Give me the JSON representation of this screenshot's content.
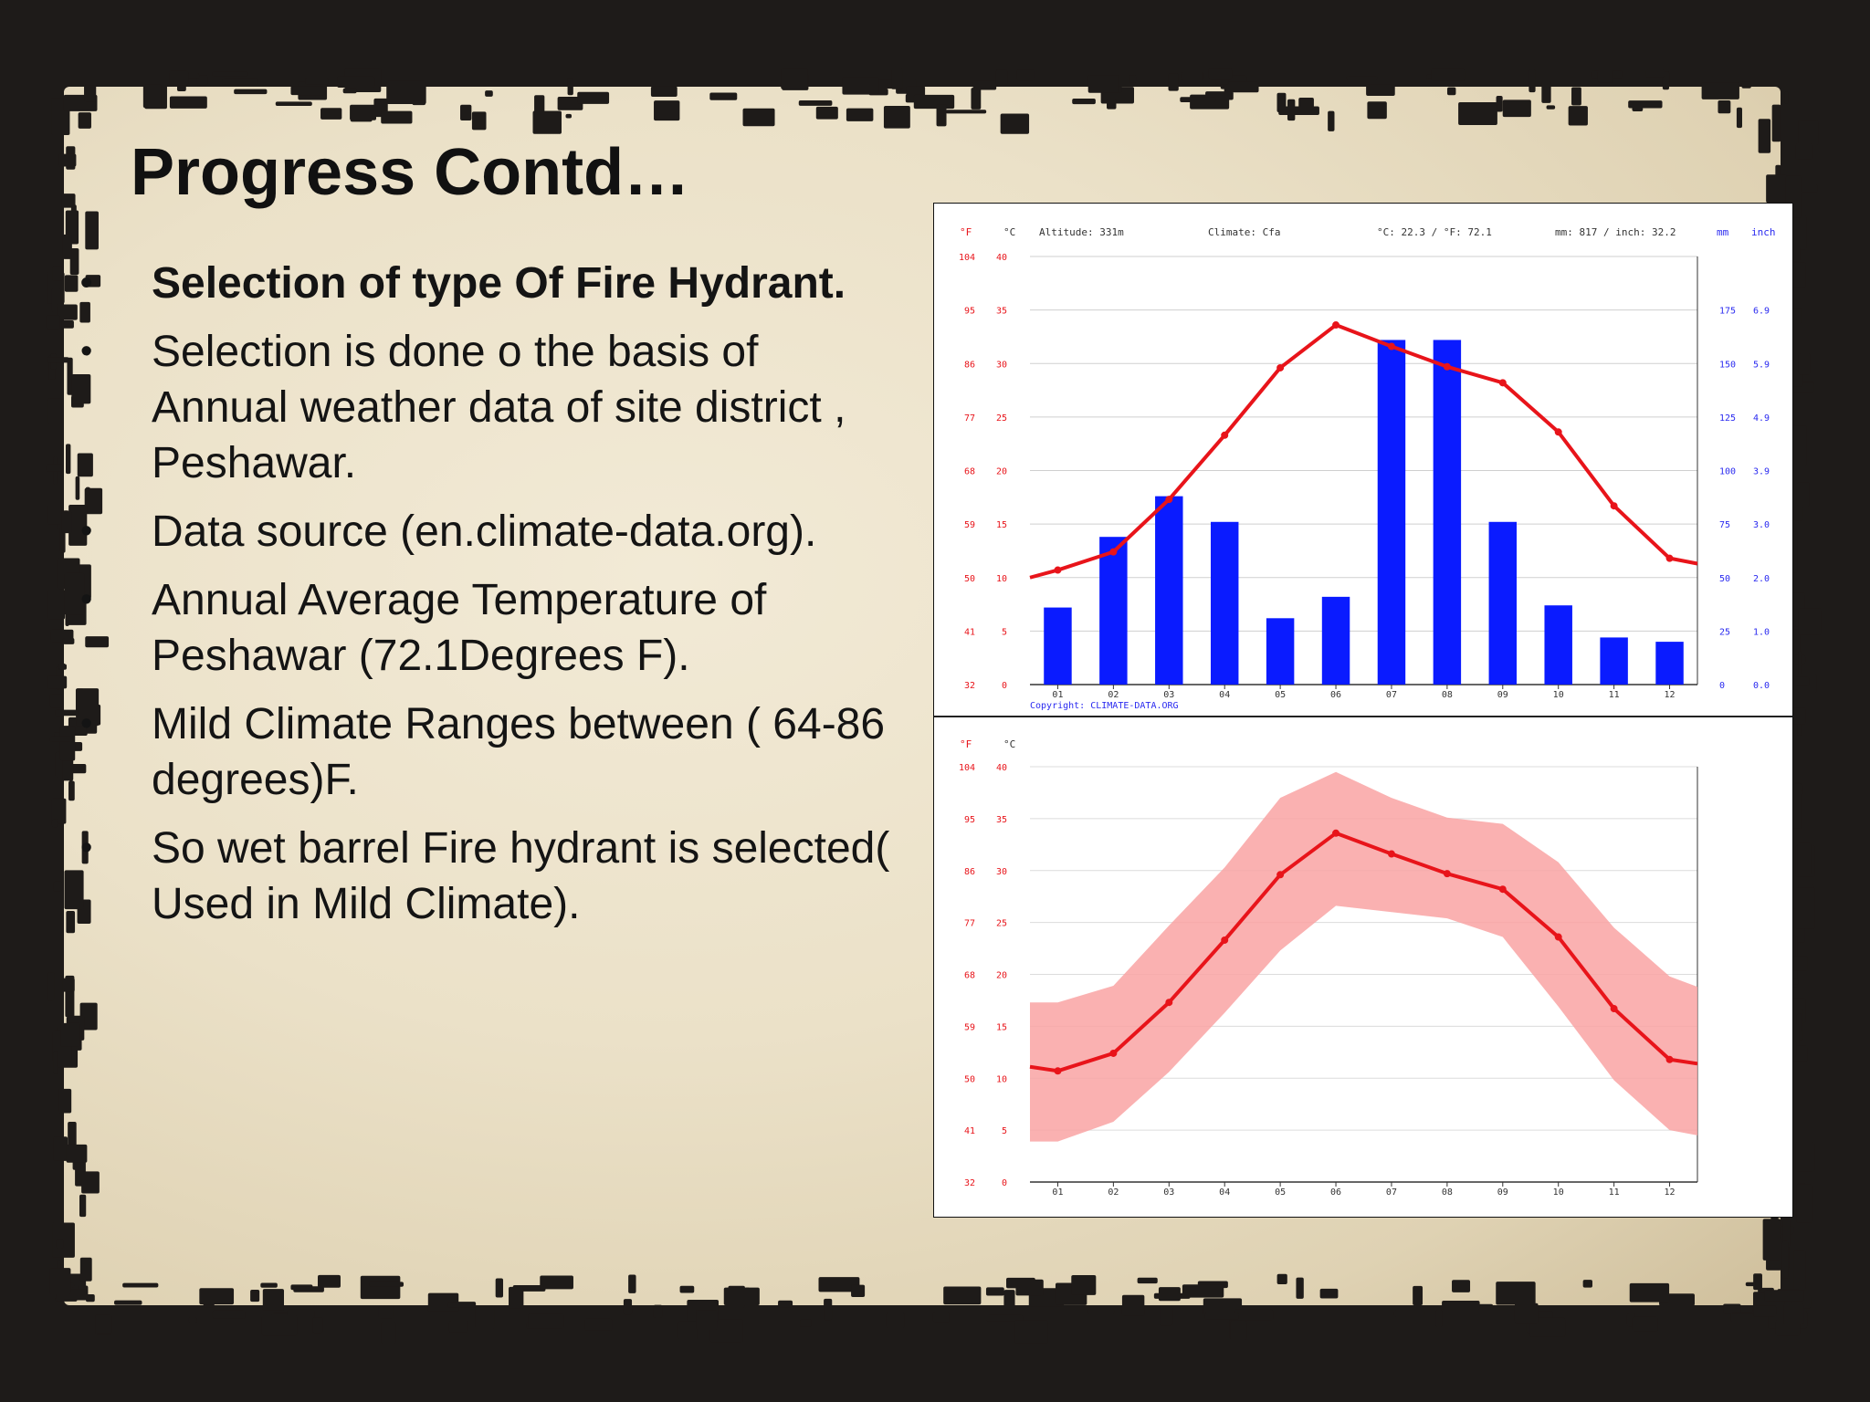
{
  "slide": {
    "title": "Progress Contd…",
    "bullets": [
      {
        "text": "Selection of type Of Fire Hydrant.",
        "bold": true
      },
      {
        "text": "Selection is done o the basis of Annual weather data of site district , Peshawar.",
        "bold": false
      },
      {
        "text": "Data source (en.climate-data.org).",
        "bold": false
      },
      {
        "text": "Annual Average Temperature of Peshawar (72.1Degrees F).",
        "bold": false
      },
      {
        "text": "Mild Climate Ranges between ( 64-86 degrees)F.",
        "bold": false
      },
      {
        "text": "So wet barrel Fire hydrant is selected( Used in Mild Climate).",
        "bold": false
      }
    ],
    "bullet_glyph": "•"
  },
  "chart_data": [
    {
      "type": "bar",
      "header": {
        "altitude": "Altitude: 331m",
        "climate": "Climate: Cfa",
        "temp_avg": "°C: 22.3 / °F: 72.1",
        "precip_total": "mm: 817 / inch: 32.2"
      },
      "unit_labels": {
        "f": "°F",
        "c": "°C",
        "mm": "mm",
        "inch": "inch"
      },
      "categories": [
        "01",
        "02",
        "03",
        "04",
        "05",
        "06",
        "07",
        "08",
        "09",
        "10",
        "11",
        "12"
      ],
      "left_ticks_c": [
        "0",
        "5",
        "10",
        "15",
        "20",
        "25",
        "30",
        "35",
        "40"
      ],
      "left_ticks_f": [
        "32",
        "41",
        "50",
        "59",
        "68",
        "77",
        "86",
        "95",
        "104"
      ],
      "right_ticks_mm": [
        "0",
        "25",
        "50",
        "75",
        "100",
        "125",
        "150",
        "175"
      ],
      "right_ticks_inch": [
        "0.0",
        "1.0",
        "2.0",
        "3.0",
        "3.9",
        "4.9",
        "5.9",
        "6.9"
      ],
      "ylim_c": [
        0,
        40
      ],
      "ylim_mm": [
        0,
        200
      ],
      "series": [
        {
          "kind": "precipitation",
          "axis": "mm",
          "color": "#0a1bff",
          "values": [
            36,
            69,
            88,
            76,
            31,
            41,
            161,
            161,
            76,
            37,
            22,
            20
          ]
        },
        {
          "kind": "temperature",
          "axis": "c",
          "color": "#e8141a",
          "values": [
            10.7,
            12.4,
            17.3,
            23.3,
            29.6,
            33.6,
            31.6,
            29.7,
            28.2,
            23.6,
            16.7,
            11.8
          ]
        }
      ],
      "copyright": "Copyright: CLIMATE-DATA.ORG",
      "grid": true
    },
    {
      "type": "area",
      "unit_labels": {
        "f": "°F",
        "c": "°C"
      },
      "categories": [
        "01",
        "02",
        "03",
        "04",
        "05",
        "06",
        "07",
        "08",
        "09",
        "10",
        "11",
        "12"
      ],
      "left_ticks_c": [
        "0",
        "5",
        "10",
        "15",
        "20",
        "25",
        "30",
        "35",
        "40"
      ],
      "left_ticks_f": [
        "32",
        "41",
        "50",
        "59",
        "68",
        "77",
        "86",
        "95",
        "104"
      ],
      "ylim_c": [
        0,
        40
      ],
      "series": [
        {
          "kind": "mean",
          "color": "#e8141a",
          "values": [
            10.7,
            12.4,
            17.3,
            23.3,
            29.6,
            33.6,
            31.6,
            29.7,
            28.2,
            23.6,
            16.7,
            11.8
          ]
        },
        {
          "kind": "max",
          "values": [
            17.3,
            18.9,
            24.7,
            30.3,
            37,
            39.5,
            37,
            35.1,
            34.5,
            30.8,
            24.5,
            19.8
          ]
        },
        {
          "kind": "min",
          "values": [
            3.9,
            5.8,
            10.6,
            16.3,
            22.3,
            26.6,
            26,
            25.4,
            23.6,
            16.9,
            9.8,
            5
          ]
        }
      ],
      "band_color": "#f9a3a3",
      "grid": true
    }
  ]
}
